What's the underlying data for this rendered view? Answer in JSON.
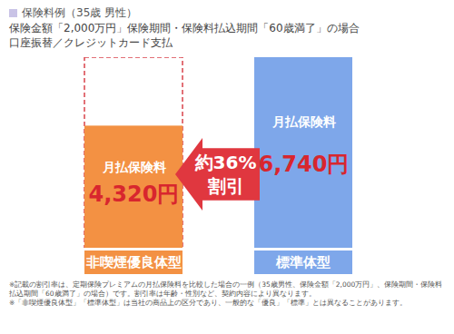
{
  "chart_data": {
    "type": "bar",
    "title": "保険料例（35歳 男性）",
    "subtitle": [
      "保険金額「2,000万円」保険期間・保険料払込期間「60歳満了」の場合",
      "口座振替／クレジットカード支払"
    ],
    "categories": [
      "非喫煙優良体型",
      "標準体型"
    ],
    "values": [
      4320,
      6740
    ],
    "value_labels": [
      "4,320円",
      "6,740円"
    ],
    "colors": [
      "#f39143",
      "#7ea7ea"
    ],
    "bar_label": "月払保険料",
    "discount": "約36%",
    "discount_text": "割引",
    "data_labels": true,
    "tick_labels": false,
    "notes": [
      "※記載の割引率は、定期保険プレミアムの月払保険料を比較した場合の一例（35歳男性、保険金額「2,000万円」、保険期間・保険料払込期間「60歳満了」の場合）です。割引率は年齢・性別など、契約内容により異なります。",
      "※「非喫煙優良体型」「標準体型」は当社の商品上の区分であり、一般的な「優良」「標準」とは異なることがあります。"
    ]
  }
}
